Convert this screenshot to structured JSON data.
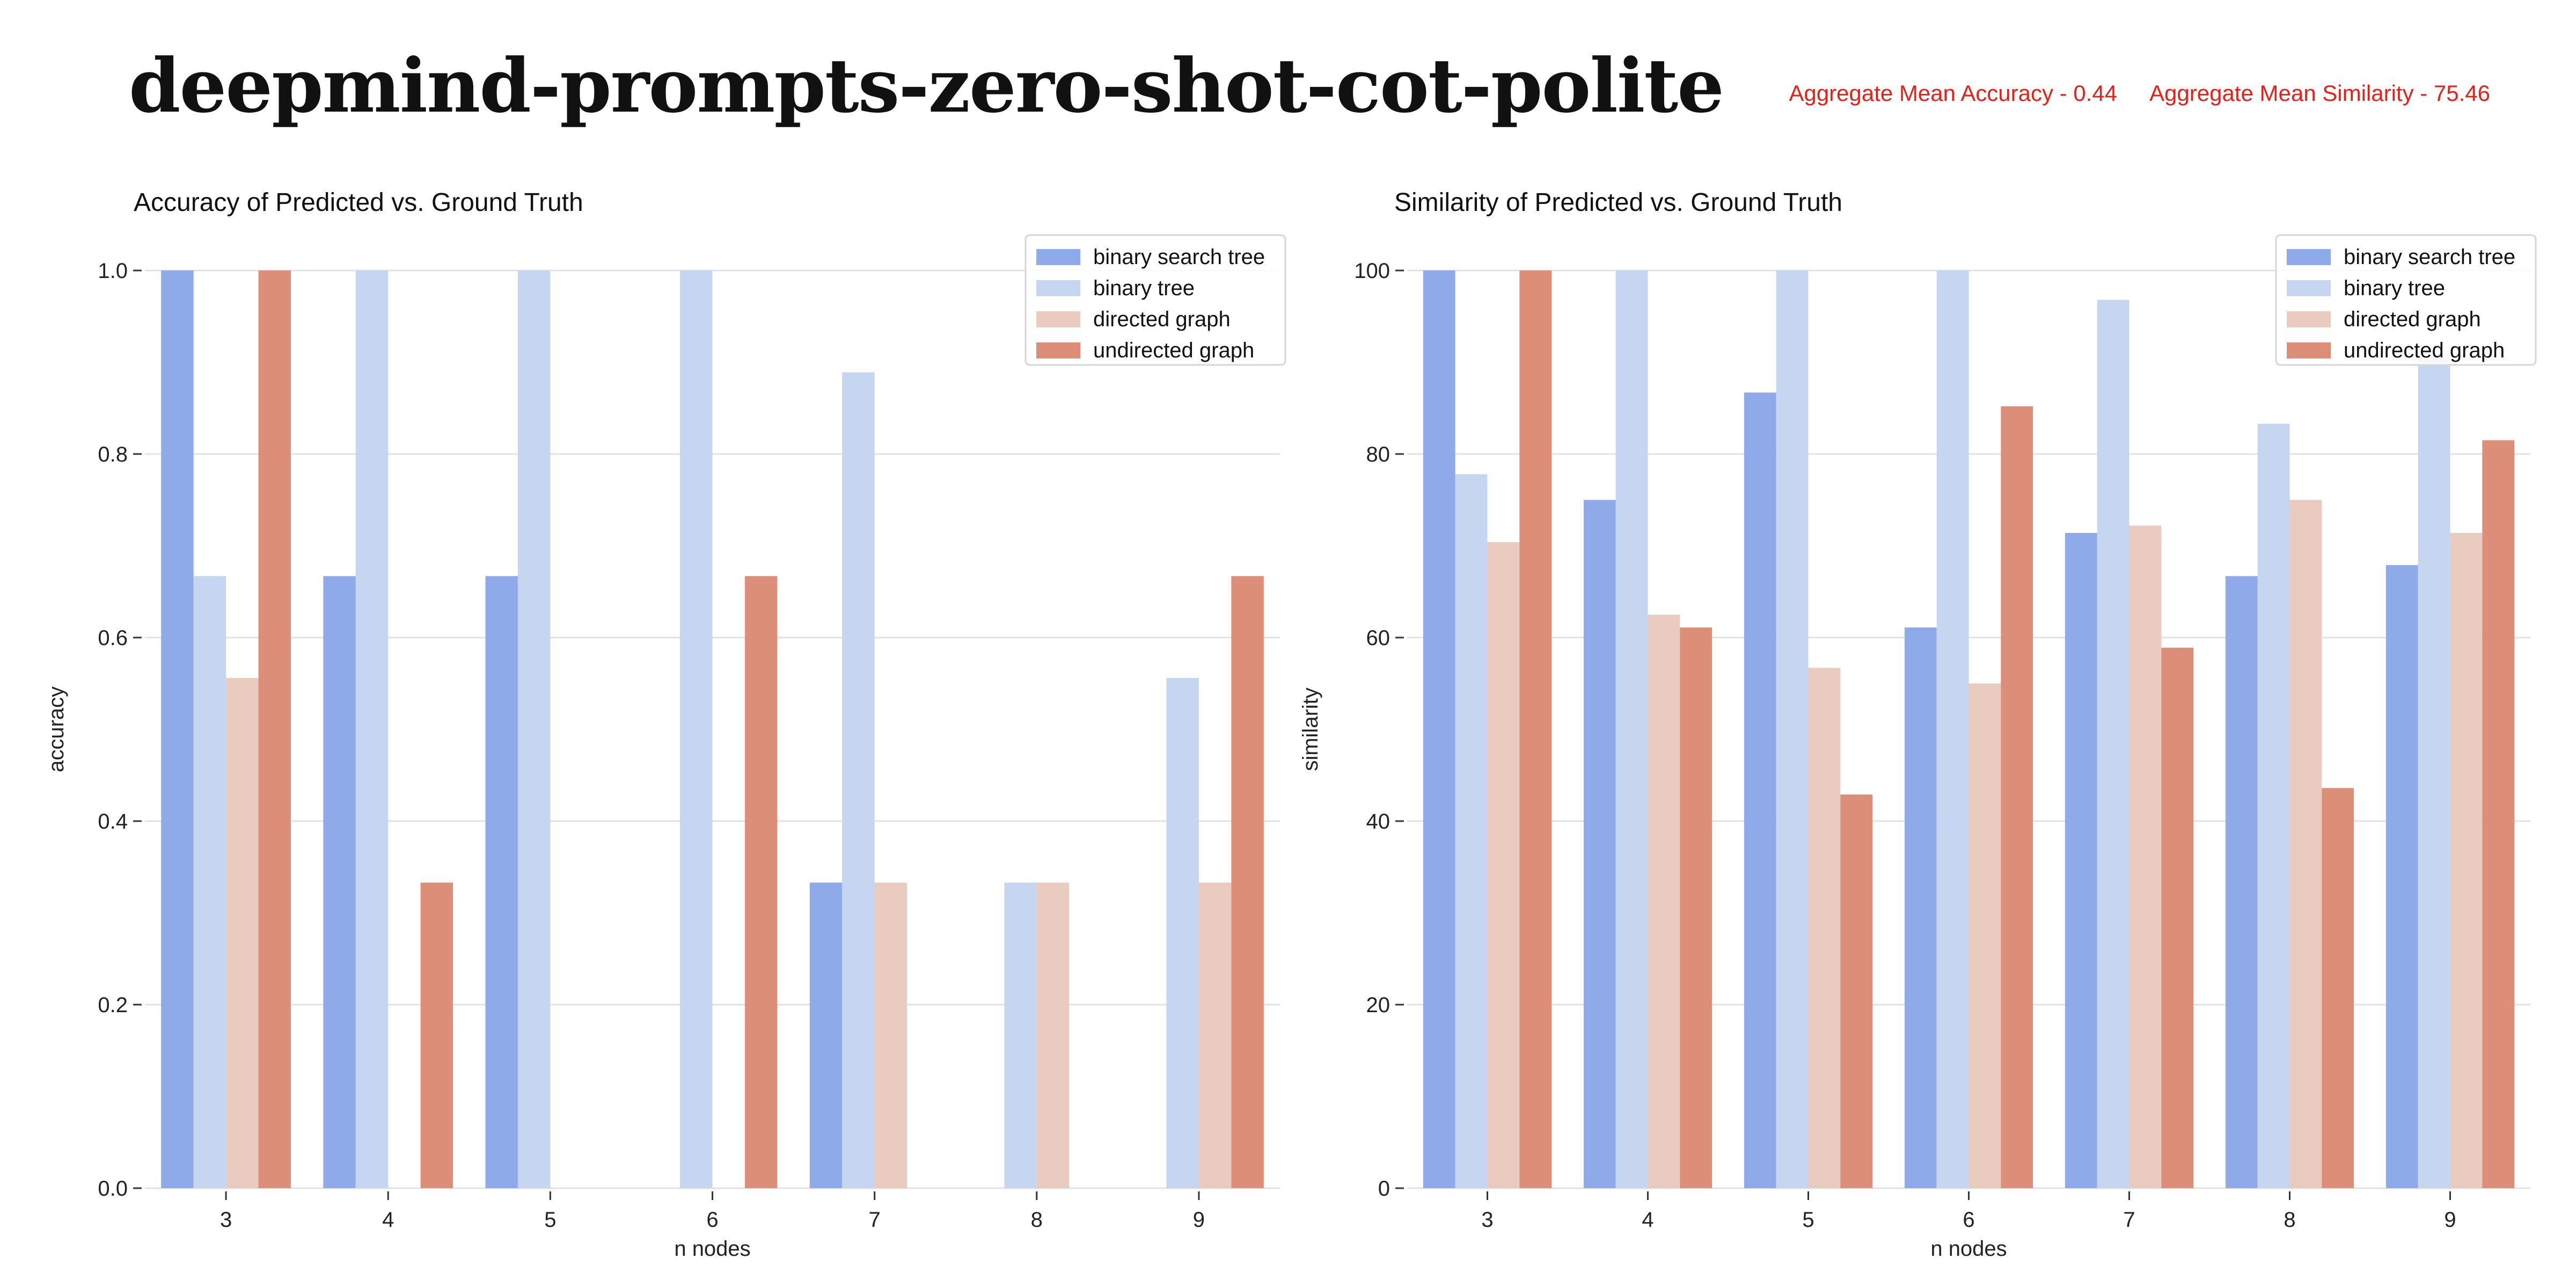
{
  "header": {
    "title": "deepmind-prompts-zero-shot-cot-polite",
    "aggregate_accuracy": "Aggregate Mean Accuracy - 0.44",
    "aggregate_similarity": "Aggregate Mean Similarity - 75.46"
  },
  "colors": {
    "binary search tree": "#8eaae8",
    "binary tree": "#c6d5f0",
    "directed graph": "#eacbbf",
    "undirected graph": "#dc8e79",
    "grid": "#e2e2e2",
    "aggregate_text": "#e8201a"
  },
  "chart_data": [
    {
      "type": "bar",
      "title": "Accuracy of Predicted vs. Ground Truth",
      "xlabel": "n nodes",
      "ylabel": "accuracy",
      "ylim": [
        0,
        1.0
      ],
      "yticks": [
        "0.0",
        "0.2",
        "0.4",
        "0.6",
        "0.8",
        "1.0"
      ],
      "categories": [
        "3",
        "4",
        "5",
        "6",
        "7",
        "8",
        "9"
      ],
      "grid": true,
      "legend_position": "top-right",
      "series": [
        {
          "name": "binary search tree",
          "values": [
            1.0,
            0.667,
            0.667,
            0.0,
            0.333,
            0.0,
            0.0
          ]
        },
        {
          "name": "binary tree",
          "values": [
            0.667,
            1.0,
            1.0,
            1.0,
            0.889,
            0.333,
            0.556
          ]
        },
        {
          "name": "directed graph",
          "values": [
            0.556,
            0.0,
            0.0,
            0.0,
            0.333,
            0.333,
            0.333
          ]
        },
        {
          "name": "undirected graph",
          "values": [
            1.0,
            0.333,
            0.0,
            0.667,
            0.0,
            0.0,
            0.667
          ]
        }
      ]
    },
    {
      "type": "bar",
      "title": "Similarity of Predicted vs. Ground Truth",
      "xlabel": "n nodes",
      "ylabel": "similarity",
      "ylim": [
        0,
        100
      ],
      "yticks": [
        "0",
        "20",
        "40",
        "60",
        "80",
        "100"
      ],
      "categories": [
        "3",
        "4",
        "5",
        "6",
        "7",
        "8",
        "9"
      ],
      "grid": true,
      "legend_position": "top-right",
      "series": [
        {
          "name": "binary search tree",
          "values": [
            100,
            75,
            86.7,
            61.1,
            71.4,
            66.7,
            67.9
          ]
        },
        {
          "name": "binary tree",
          "values": [
            77.8,
            100,
            100,
            100,
            96.8,
            83.3,
            90.5
          ]
        },
        {
          "name": "directed graph",
          "values": [
            70.4,
            62.5,
            56.7,
            55.0,
            72.2,
            75.0,
            71.4
          ]
        },
        {
          "name": "undirected graph",
          "values": [
            100,
            61.1,
            42.9,
            85.2,
            58.9,
            43.6,
            81.5
          ]
        }
      ]
    }
  ]
}
